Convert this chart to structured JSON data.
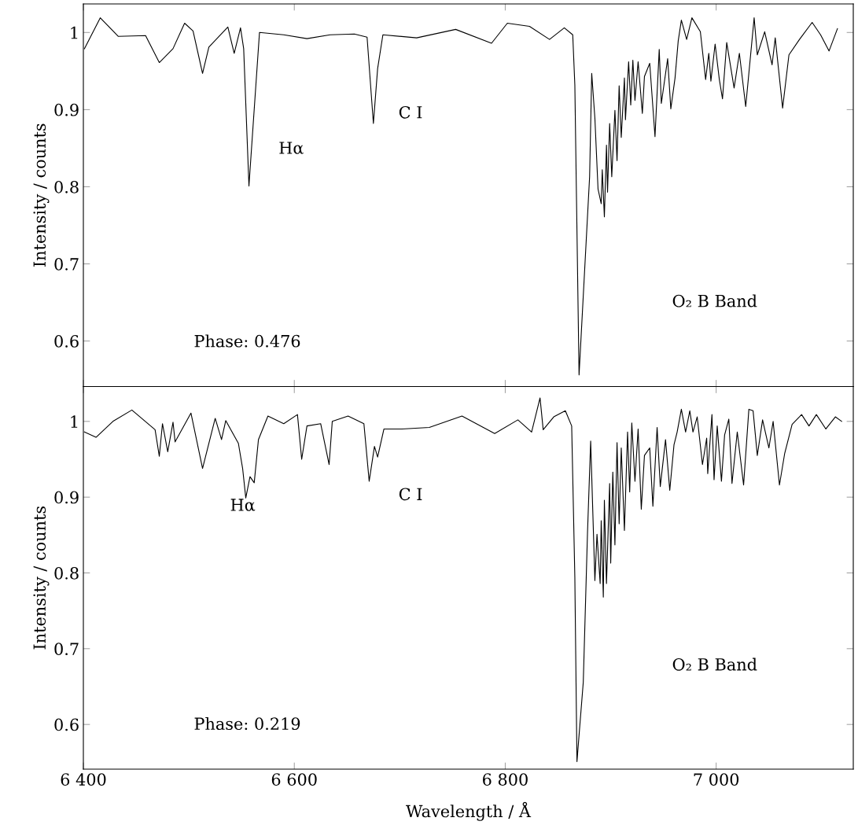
{
  "chart_data": [
    {
      "type": "line",
      "ylabel": "Intensity / counts",
      "xlim": [
        6400,
        7130
      ],
      "ylim": [
        0.541,
        1.037
      ],
      "xticks": [
        {
          "value": 6400,
          "label": null
        },
        {
          "value": 6600,
          "label": null
        },
        {
          "value": 6800,
          "label": null
        },
        {
          "value": 7000,
          "label": null
        }
      ],
      "yticks": [
        0.6,
        0.7,
        0.8,
        0.9,
        1
      ],
      "tick_labels": "y",
      "grid": false,
      "series": [
        {
          "color": "#000000",
          "x": [
            6401,
            6416,
            6433,
            6459,
            6472,
            6485,
            6496,
            6504,
            6513,
            6519,
            6537,
            6543,
            6549,
            6552,
            6557,
            6567,
            6590,
            6612,
            6634,
            6657,
            6669,
            6675,
            6679,
            6684,
            6716,
            6753,
            6787,
            6802,
            6823,
            6842,
            6856,
            6864,
            6866,
            6870,
            6880,
            6882,
            6885,
            6888,
            6891,
            6892,
            6894,
            6896,
            6897,
            6899,
            6901,
            6904,
            6906,
            6908,
            6910,
            6913,
            6914,
            6917,
            6919,
            6921,
            6923,
            6926,
            6930,
            6932,
            6937,
            6942,
            6946,
            6948,
            6954,
            6957,
            6961,
            6964,
            6967,
            6972,
            6977,
            6985,
            6990,
            6993,
            6995,
            6999,
            7003,
            7006,
            7010,
            7017,
            7022,
            7028,
            7036,
            7039,
            7046,
            7053,
            7056,
            7063,
            7069,
            7079,
            7091,
            7099,
            7107,
            7115
          ],
          "values": [
            0.979,
            1.019,
            0.995,
            0.996,
            0.961,
            0.979,
            1.012,
            1.002,
            0.947,
            0.981,
            1.007,
            0.973,
            1.006,
            0.979,
            0.801,
            1.0,
            0.997,
            0.992,
            0.997,
            0.998,
            0.994,
            0.882,
            0.953,
            0.997,
            0.993,
            1.004,
            0.986,
            1.012,
            1.008,
            0.991,
            1.006,
            0.997,
            0.932,
            0.556,
            0.813,
            0.947,
            0.889,
            0.797,
            0.778,
            0.822,
            0.761,
            0.854,
            0.793,
            0.882,
            0.813,
            0.899,
            0.834,
            0.931,
            0.864,
            0.941,
            0.887,
            0.962,
            0.906,
            0.964,
            0.912,
            0.962,
            0.895,
            0.943,
            0.96,
            0.865,
            0.978,
            0.908,
            0.966,
            0.901,
            0.941,
            0.989,
            1.016,
            0.991,
            1.019,
            1.001,
            0.939,
            0.973,
            0.937,
            0.985,
            0.939,
            0.914,
            0.987,
            0.928,
            0.973,
            0.904,
            1.019,
            0.971,
            1.001,
            0.958,
            0.993,
            0.902,
            0.971,
            0.991,
            1.013,
            0.997,
            0.976,
            1.005
          ]
        }
      ],
      "annotations": [
        "Hα",
        "C I",
        "O₂ B Band",
        "Phase: 0.476"
      ]
    },
    {
      "type": "line",
      "ylabel": "Intensity / counts",
      "xlabel": "Wavelength / Å",
      "xlim": [
        6400,
        7130
      ],
      "ylim": [
        0.541,
        1.046
      ],
      "xticks": [
        {
          "value": 6400,
          "label": "6 400"
        },
        {
          "value": 6600,
          "label": "6 600"
        },
        {
          "value": 6800,
          "label": "6 800"
        },
        {
          "value": 7000,
          "label": "7 000"
        }
      ],
      "yticks": [
        0.6,
        0.7,
        0.8,
        0.9,
        1
      ],
      "grid": false,
      "series": [
        {
          "color": "#000000",
          "x": [
            6401,
            6412,
            6428,
            6446,
            6468,
            6472,
            6475,
            6480,
            6485,
            6487,
            6502,
            6513,
            6525,
            6531,
            6535,
            6547,
            6551,
            6554,
            6558,
            6562,
            6566,
            6575,
            6590,
            6603,
            6607,
            6612,
            6625,
            6633,
            6636,
            6651,
            6666,
            6671,
            6676,
            6679,
            6685,
            6702,
            6728,
            6759,
            6790,
            6812,
            6825,
            6833,
            6836,
            6846,
            6857,
            6863,
            6866,
            6868,
            6874,
            6878,
            6881,
            6885,
            6887,
            6890,
            6891,
            6893,
            6894,
            6896,
            6899,
            6900,
            6902,
            6904,
            6906,
            6908,
            6910,
            6913,
            6916,
            6918,
            6920,
            6923,
            6926,
            6929,
            6932,
            6937,
            6940,
            6944,
            6947,
            6952,
            6956,
            6960,
            6963,
            6967,
            6971,
            6975,
            6978,
            6982,
            6987,
            6991,
            6992,
            6996,
            6998,
            7001,
            7005,
            7008,
            7012,
            7015,
            7020,
            7026,
            7031,
            7035,
            7039,
            7044,
            7050,
            7054,
            7060,
            7065,
            7072,
            7081,
            7088,
            7095,
            7104,
            7113,
            7119
          ],
          "values": [
            0.986,
            0.979,
            1.0,
            1.015,
            0.989,
            0.954,
            0.997,
            0.96,
            0.999,
            0.973,
            1.011,
            0.938,
            1.004,
            0.976,
            1.001,
            0.971,
            0.938,
            0.899,
            0.927,
            0.919,
            0.976,
            1.007,
            0.997,
            1.009,
            0.95,
            0.994,
            0.997,
            0.943,
            1.0,
            1.007,
            0.997,
            0.921,
            0.967,
            0.953,
            0.99,
            0.99,
            0.992,
            1.007,
            0.984,
            1.002,
            0.986,
            1.031,
            0.989,
            1.006,
            1.014,
            0.994,
            0.794,
            0.551,
            0.656,
            0.853,
            0.974,
            0.79,
            0.851,
            0.786,
            0.869,
            0.768,
            0.896,
            0.786,
            0.918,
            0.813,
            0.933,
            0.837,
            0.972,
            0.865,
            0.965,
            0.856,
            0.986,
            0.907,
            0.998,
            0.921,
            0.99,
            0.884,
            0.955,
            0.965,
            0.888,
            0.992,
            0.914,
            0.976,
            0.909,
            0.969,
            0.986,
            1.016,
            0.986,
            1.014,
            0.986,
            1.006,
            0.943,
            0.978,
            0.931,
            1.009,
            0.923,
            0.994,
            0.921,
            0.982,
            1.003,
            0.918,
            0.986,
            0.916,
            1.016,
            1.014,
            0.955,
            1.002,
            0.965,
            1.0,
            0.916,
            0.958,
            0.996,
            1.009,
            0.994,
            1.009,
            0.99,
            1.006,
            1.0
          ]
        }
      ],
      "annotations": [
        "Hα",
        "C I",
        "O₂ B Band",
        "Phase: 0.219"
      ]
    }
  ]
}
